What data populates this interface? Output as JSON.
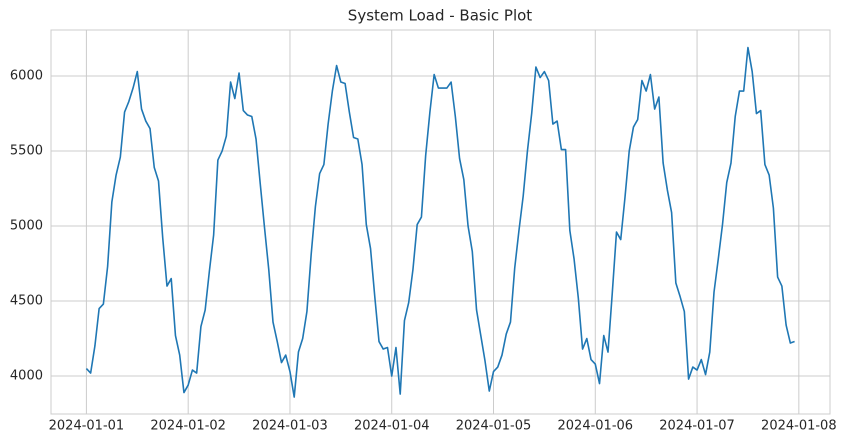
{
  "chart_data": {
    "type": "line",
    "title": "System Load - Basic Plot",
    "x": [
      0,
      1,
      2,
      3,
      4,
      5,
      6,
      7,
      8,
      9,
      10,
      11,
      12,
      13,
      14,
      15,
      16,
      17,
      18,
      19,
      20,
      21,
      22,
      23,
      24,
      25,
      26,
      27,
      28,
      29,
      30,
      31,
      32,
      33,
      34,
      35,
      36,
      37,
      38,
      39,
      40,
      41,
      42,
      43,
      44,
      45,
      46,
      47,
      48,
      49,
      50,
      51,
      52,
      53,
      54,
      55,
      56,
      57,
      58,
      59,
      60,
      61,
      62,
      63,
      64,
      65,
      66,
      67,
      68,
      69,
      70,
      71,
      72,
      73,
      74,
      75,
      76,
      77,
      78,
      79,
      80,
      81,
      82,
      83,
      84,
      85,
      86,
      87,
      88,
      89,
      90,
      91,
      92,
      93,
      94,
      95,
      96,
      97,
      98,
      99,
      100,
      101,
      102,
      103,
      104,
      105,
      106,
      107,
      108,
      109,
      110,
      111,
      112,
      113,
      114,
      115,
      116,
      117,
      118,
      119,
      120,
      121,
      122,
      123,
      124,
      125,
      126,
      127,
      128,
      129,
      130,
      131,
      132,
      133,
      134,
      135,
      136,
      137,
      138,
      139,
      140,
      141,
      142,
      143,
      144,
      145,
      146,
      147,
      148,
      149,
      150,
      151,
      152,
      153,
      154,
      155,
      156,
      157,
      158,
      159,
      160,
      161,
      162,
      163,
      164,
      165,
      166,
      167
    ],
    "values": [
      4050,
      4020,
      4200,
      4450,
      4480,
      4730,
      5160,
      5340,
      5460,
      5760,
      5830,
      5920,
      6030,
      5780,
      5700,
      5650,
      5390,
      5300,
      4920,
      4600,
      4650,
      4270,
      4140,
      3890,
      3940,
      4040,
      4020,
      4330,
      4440,
      4700,
      4940,
      5440,
      5500,
      5600,
      5960,
      5850,
      6020,
      5770,
      5740,
      5730,
      5580,
      5280,
      4990,
      4710,
      4360,
      4230,
      4090,
      4140,
      4030,
      3860,
      4160,
      4250,
      4430,
      4810,
      5130,
      5350,
      5410,
      5680,
      5900,
      6070,
      5960,
      5950,
      5760,
      5590,
      5580,
      5410,
      5010,
      4850,
      4530,
      4230,
      4180,
      4190,
      4000,
      4190,
      3880,
      4370,
      4490,
      4710,
      5010,
      5060,
      5470,
      5760,
      6010,
      5920,
      5920,
      5920,
      5960,
      5730,
      5450,
      5310,
      5000,
      4830,
      4440,
      4270,
      4100,
      3900,
      4030,
      4060,
      4140,
      4280,
      4360,
      4720,
      4970,
      5200,
      5500,
      5750,
      6060,
      5990,
      6030,
      5970,
      5680,
      5700,
      5510,
      5510,
      4970,
      4780,
      4520,
      4180,
      4250,
      4110,
      4080,
      3950,
      4270,
      4160,
      4550,
      4960,
      4910,
      5190,
      5500,
      5660,
      5710,
      5970,
      5900,
      6010,
      5780,
      5860,
      5420,
      5240,
      5090,
      4620,
      4530,
      4430,
      3980,
      4060,
      4040,
      4110,
      4010,
      4160,
      4560,
      4780,
      5010,
      5290,
      5420,
      5730,
      5900,
      5900,
      6190,
      6030,
      5750,
      5770,
      5410,
      5340,
      5120,
      4660,
      4600,
      4340,
      4220,
      4230
    ],
    "color": "#1f77b4",
    "xlim": [
      -8.35,
      175.35
    ],
    "xticks": [
      {
        "value": 0,
        "label": "2024-01-01"
      },
      {
        "value": 24,
        "label": "2024-01-02"
      },
      {
        "value": 48,
        "label": "2024-01-03"
      },
      {
        "value": 72,
        "label": "2024-01-04"
      },
      {
        "value": 96,
        "label": "2024-01-05"
      },
      {
        "value": 120,
        "label": "2024-01-06"
      },
      {
        "value": 144,
        "label": "2024-01-07"
      },
      {
        "value": 168,
        "label": "2024-01-08"
      }
    ],
    "ylim": [
      3747,
      6307
    ],
    "yticks": [
      4000,
      4500,
      5000,
      5500,
      6000
    ],
    "grid": true
  }
}
